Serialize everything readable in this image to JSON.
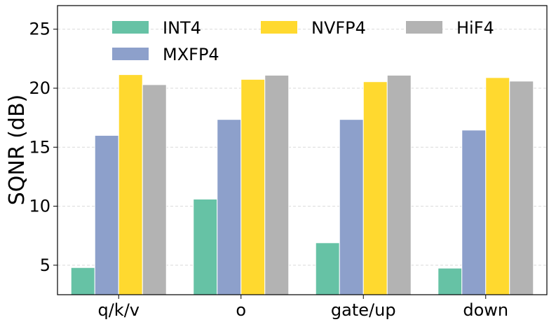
{
  "chart_data": {
    "type": "bar",
    "title": "",
    "xlabel": "",
    "ylabel": "SQNR (dB)",
    "ylim": [
      2.5,
      27
    ],
    "yticks": [
      5,
      10,
      15,
      20,
      25
    ],
    "grid": "y-dashed",
    "legend_position": "top",
    "categories": [
      "q/k/v",
      "o",
      "gate/up",
      "down"
    ],
    "series": [
      {
        "name": "INT4",
        "color": "#66c2a5",
        "values": [
          4.8,
          10.6,
          6.9,
          4.75
        ]
      },
      {
        "name": "MXFP4",
        "color": "#8da0cb",
        "values": [
          16.0,
          17.35,
          17.35,
          16.45
        ]
      },
      {
        "name": "NVFP4",
        "color": "#ffd92f",
        "values": [
          21.15,
          20.75,
          20.55,
          20.9
        ]
      },
      {
        "name": "HiF4",
        "color": "#b3b3b3",
        "values": [
          20.3,
          21.1,
          21.1,
          20.6
        ]
      }
    ]
  }
}
